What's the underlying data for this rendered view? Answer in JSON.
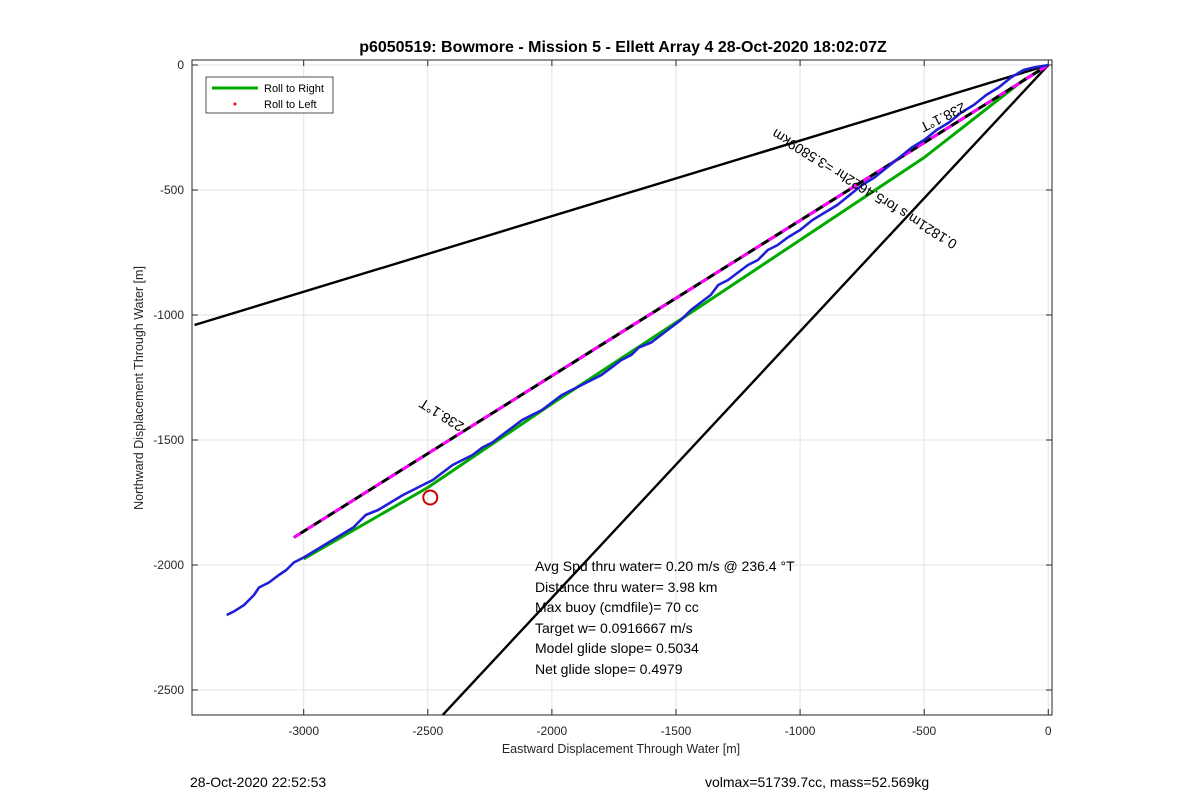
{
  "chart_data": {
    "type": "line",
    "title": "p6050519: Bowmore - Mission 5 - Ellett Array 4 28-Oct-2020 18:02:07Z",
    "xlabel": "Eastward Displacement Through Water [m]",
    "ylabel": "Northward Displacement Through Water [m]",
    "xlim": [
      -3450,
      15
    ],
    "ylim": [
      -2600,
      20
    ],
    "xticks": [
      -3000,
      -2500,
      -2000,
      -1500,
      -1000,
      -500,
      0
    ],
    "yticks": [
      0,
      -500,
      -1000,
      -1500,
      -2000,
      -2500
    ],
    "grid": true,
    "legend": {
      "placement": "top-left",
      "entries": [
        {
          "label": "Roll to Right",
          "color": "#00aa00",
          "style": "line"
        },
        {
          "label": "Roll to Left",
          "color": "#ff0000",
          "style": "dot"
        }
      ]
    },
    "series": [
      {
        "key": "track-blue",
        "color": "#1f1fd6",
        "x": [
          -3310,
          -3280,
          -3240,
          -3200,
          -3180,
          -3140,
          -3100,
          -3070,
          -3040,
          -3000,
          -2950,
          -2900,
          -2850,
          -2800,
          -2750,
          -2700,
          -2650,
          -2600,
          -2560,
          -2520,
          -2480,
          -2440,
          -2400,
          -2360,
          -2320,
          -2280,
          -2240,
          -2200,
          -2160,
          -2120,
          -2080,
          -2040,
          -2000,
          -1960,
          -1920,
          -1880,
          -1840,
          -1800,
          -1760,
          -1720,
          -1680,
          -1650,
          -1600,
          -1560,
          -1520,
          -1480,
          -1440,
          -1400,
          -1360,
          -1330,
          -1290,
          -1250,
          -1210,
          -1170,
          -1130,
          -1090,
          -1050,
          -1000,
          -950,
          -900,
          -850,
          -800,
          -750,
          -700,
          -650,
          -600,
          -550,
          -500,
          -450,
          -400,
          -350,
          -300,
          -250,
          -200,
          -150,
          -100,
          -60,
          -30,
          -10,
          0
        ],
        "y": [
          -2200,
          -2185,
          -2160,
          -2120,
          -2090,
          -2070,
          -2040,
          -2020,
          -1990,
          -1970,
          -1940,
          -1910,
          -1880,
          -1850,
          -1800,
          -1780,
          -1750,
          -1720,
          -1700,
          -1680,
          -1660,
          -1630,
          -1600,
          -1580,
          -1560,
          -1530,
          -1510,
          -1480,
          -1450,
          -1420,
          -1400,
          -1380,
          -1350,
          -1320,
          -1300,
          -1280,
          -1260,
          -1240,
          -1210,
          -1180,
          -1160,
          -1130,
          -1110,
          -1080,
          -1050,
          -1020,
          -980,
          -950,
          -920,
          -880,
          -860,
          -830,
          -800,
          -780,
          -740,
          -720,
          -690,
          -660,
          -620,
          -590,
          -560,
          -520,
          -480,
          -450,
          -410,
          -370,
          -330,
          -300,
          -260,
          -230,
          -190,
          -160,
          -120,
          -90,
          -50,
          -20,
          -10,
          -5,
          -2,
          0
        ]
      },
      {
        "key": "track-green",
        "color": "#00aa00",
        "x": [
          -3000,
          -2500,
          -2000,
          -1500,
          -1000,
          -500,
          -100,
          0
        ],
        "y": [
          -1975,
          -1690,
          -1355,
          -1030,
          -700,
          -370,
          -60,
          0
        ]
      },
      {
        "key": "bearing-dashed",
        "color": "#000000",
        "dash_color": "#ff00ff",
        "x": [
          -3040,
          0
        ],
        "y": [
          -1890,
          0
        ]
      },
      {
        "key": "bound-upper",
        "color": "#000000",
        "x": [
          -3440,
          0
        ],
        "y": [
          -1040,
          0
        ]
      },
      {
        "key": "bound-lower",
        "color": "#000000",
        "x": [
          -2440,
          0
        ],
        "y": [
          -2600,
          0
        ]
      }
    ],
    "marker": {
      "x": -2490,
      "y": -1730,
      "color": "#cc0000"
    },
    "annotations": {
      "bearing_upper": "238.1°T",
      "bearing_lower": "238.1°T",
      "speed_line": "0.1821m/s for5.4622hr =3.5809km"
    },
    "stats": [
      "Avg Spd thru water=  0.20 m/s @ 236.4 °T",
      "Distance thru water=  3.98 km",
      "Max buoy (cmdfile)= 70 cc",
      "Target w= 0.0916667 m/s",
      "Model glide slope= 0.5034",
      "Net glide slope= 0.4979"
    ],
    "footer_left": "28-Oct-2020 22:52:53",
    "footer_right": "volmax=51739.7cc, mass=52.569kg"
  }
}
